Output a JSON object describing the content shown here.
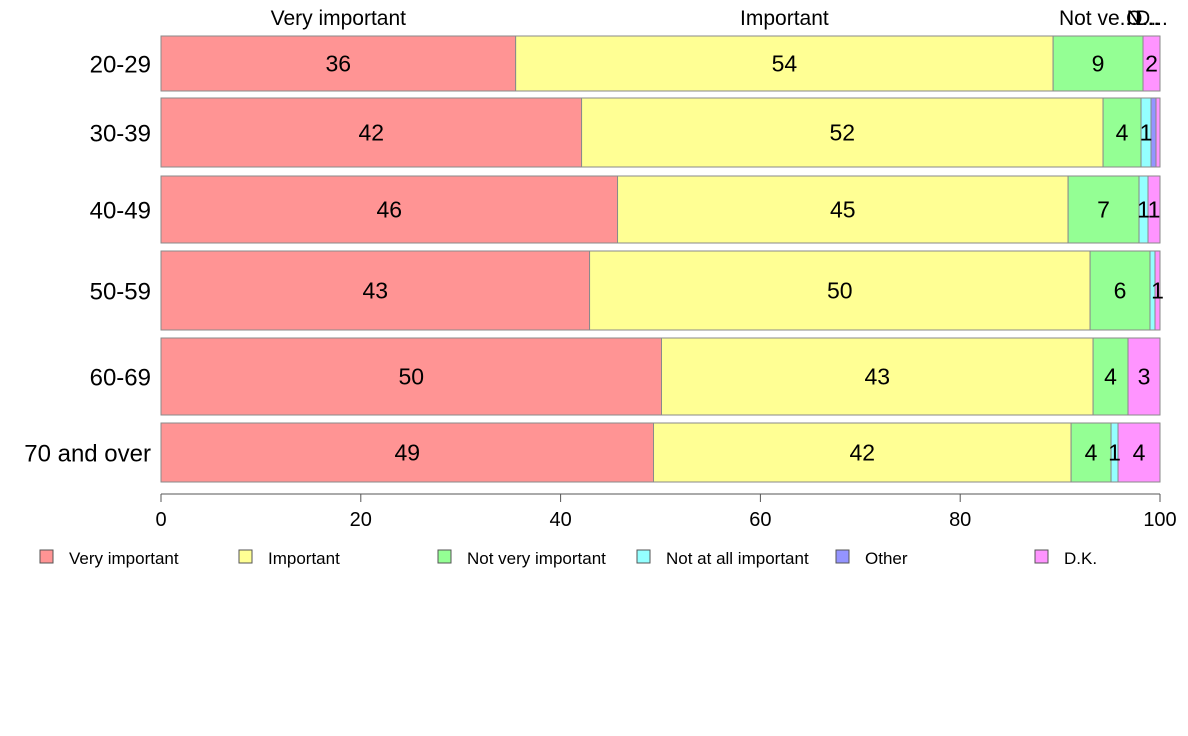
{
  "chart_data": {
    "type": "bar",
    "orientation": "horizontal",
    "stacked": true,
    "categories": [
      "20-29",
      "30-39",
      "40-49",
      "50-59",
      "60-69",
      "70 and over"
    ],
    "series": [
      {
        "name": "Very important",
        "color": "#FF9494",
        "values": [
          35.5,
          42.1,
          45.7,
          42.9,
          50.1,
          49.3
        ],
        "labels": [
          "36",
          "42",
          "46",
          "43",
          "50",
          "49"
        ]
      },
      {
        "name": "Important",
        "color": "#FFFF94",
        "values": [
          53.8,
          52.2,
          45.1,
          50.1,
          43.2,
          41.8
        ],
        "labels": [
          "54",
          "52",
          "45",
          "50",
          "43",
          "42"
        ]
      },
      {
        "name": "Not very important",
        "color": "#94FF94",
        "values": [
          9.0,
          3.8,
          7.1,
          6.0,
          3.5,
          4.0
        ],
        "labels": [
          "9",
          "4",
          "7",
          "6",
          "4",
          "4"
        ]
      },
      {
        "name": "Not at all important",
        "color": "#94FFFF",
        "values": [
          0.0,
          1.0,
          0.9,
          0.5,
          0.0,
          0.7
        ],
        "labels": [
          "",
          "1",
          "1",
          "",
          "",
          "1"
        ]
      },
      {
        "name": "Other",
        "color": "#9494FF",
        "values": [
          0.0,
          0.5,
          0.0,
          0.0,
          0.0,
          0.0
        ],
        "labels": [
          "",
          "",
          "",
          "",
          "",
          ""
        ]
      },
      {
        "name": "D.K.",
        "color": "#FF94FF",
        "values": [
          1.7,
          0.4,
          1.2,
          0.5,
          3.2,
          4.2
        ],
        "labels": [
          "2",
          "",
          "1",
          "1",
          "3",
          "4"
        ]
      }
    ],
    "top_labels": [
      "Very important",
      "Important",
      "Not ve...",
      "N...",
      "O...",
      "D..."
    ],
    "xlim": [
      0,
      100
    ],
    "xticks": [
      "0",
      "20",
      "40",
      "60",
      "80",
      "100"
    ],
    "grid": false,
    "legend": "bottom"
  }
}
